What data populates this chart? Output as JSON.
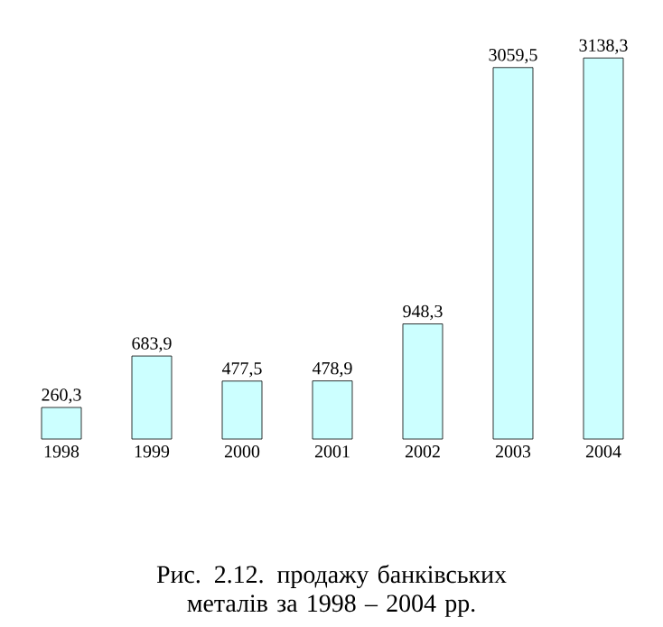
{
  "chart_data": {
    "type": "bar",
    "categories": [
      "1998",
      "1999",
      "2000",
      "2001",
      "2002",
      "2003",
      "2004"
    ],
    "values": [
      260.3,
      683.9,
      477.5,
      478.9,
      948.3,
      3059.5,
      3138.3
    ],
    "value_labels": [
      "260,3",
      "683,9",
      "477,5",
      "478,9",
      "948,3",
      "3059,5",
      "3138,3"
    ],
    "color": "#ccffff",
    "annotations": [
      "Рис. 2.12. продажу банківських металів за 1998 – 2004 рр."
    ]
  }
}
